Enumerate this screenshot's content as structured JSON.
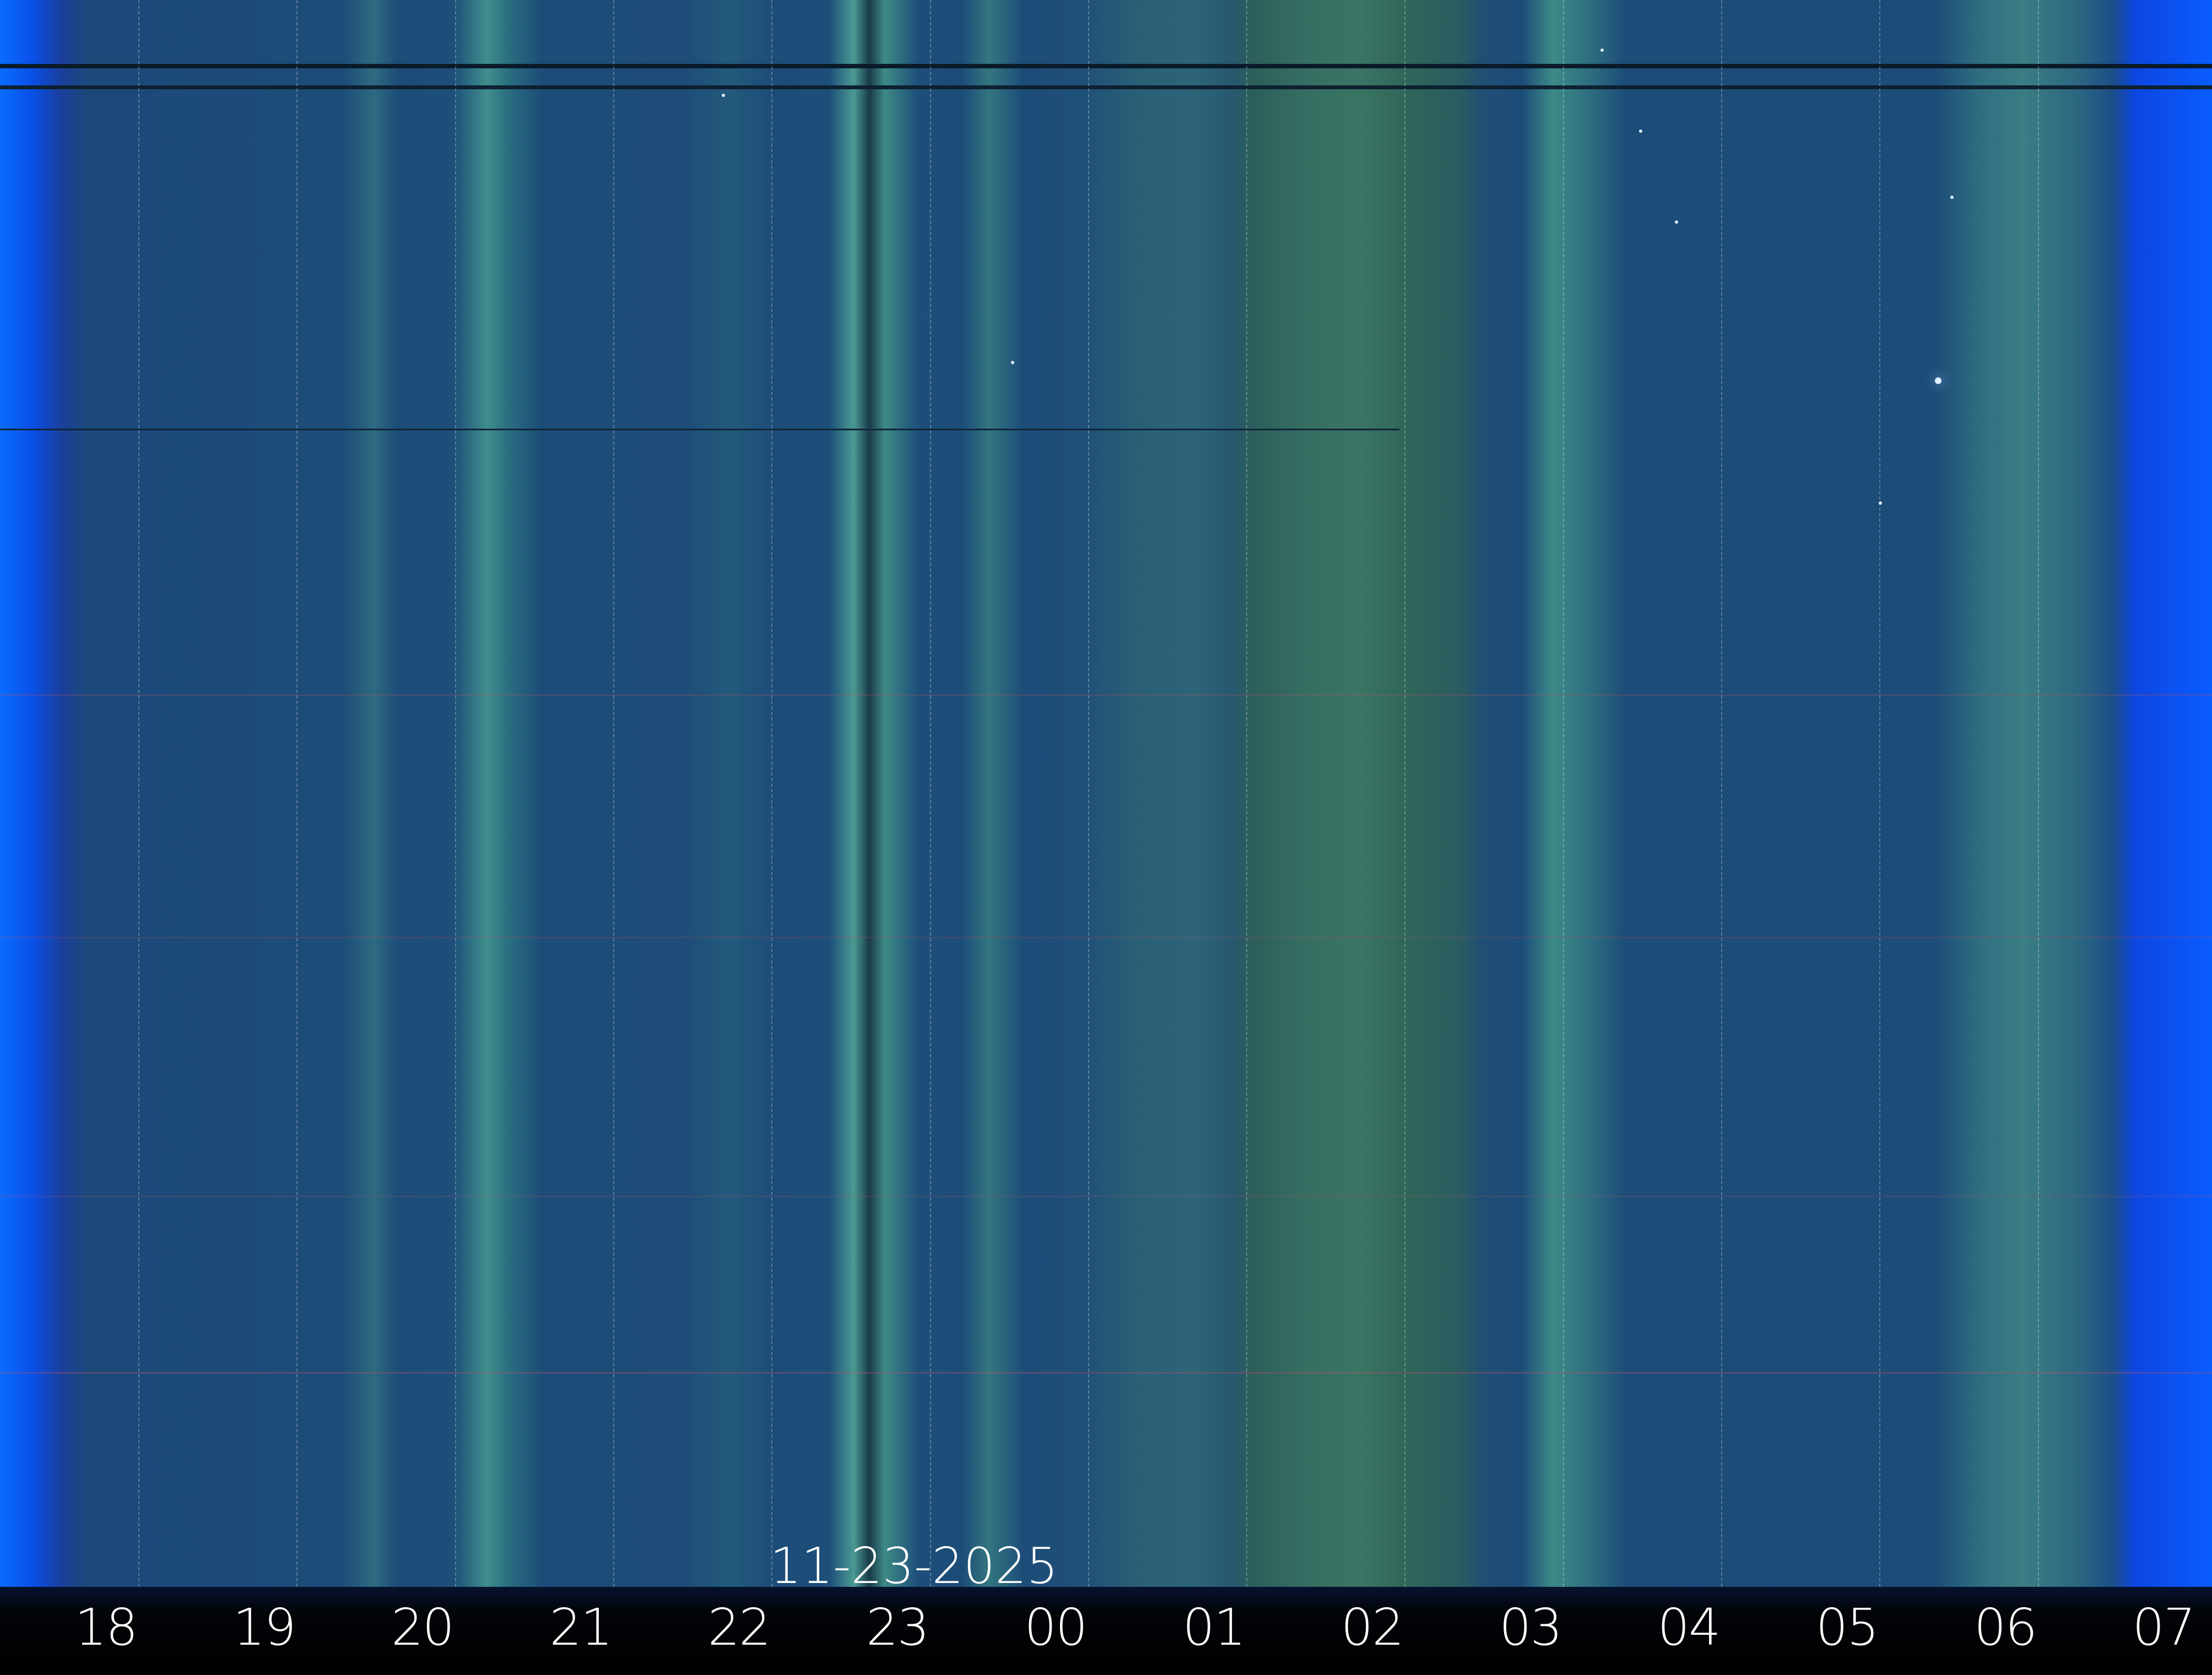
{
  "date_label": "11-23-2025",
  "hour_labels": [
    "18",
    "19",
    "20",
    "21",
    "22",
    "23",
    "00",
    "01",
    "02",
    "03",
    "04",
    "05",
    "06",
    "07"
  ],
  "colors": {
    "sky": "#1c4c78",
    "aurora_green": "#3a7564",
    "edge_blue": "#0a5cff",
    "label": "#ffffff",
    "band": "#000000"
  }
}
